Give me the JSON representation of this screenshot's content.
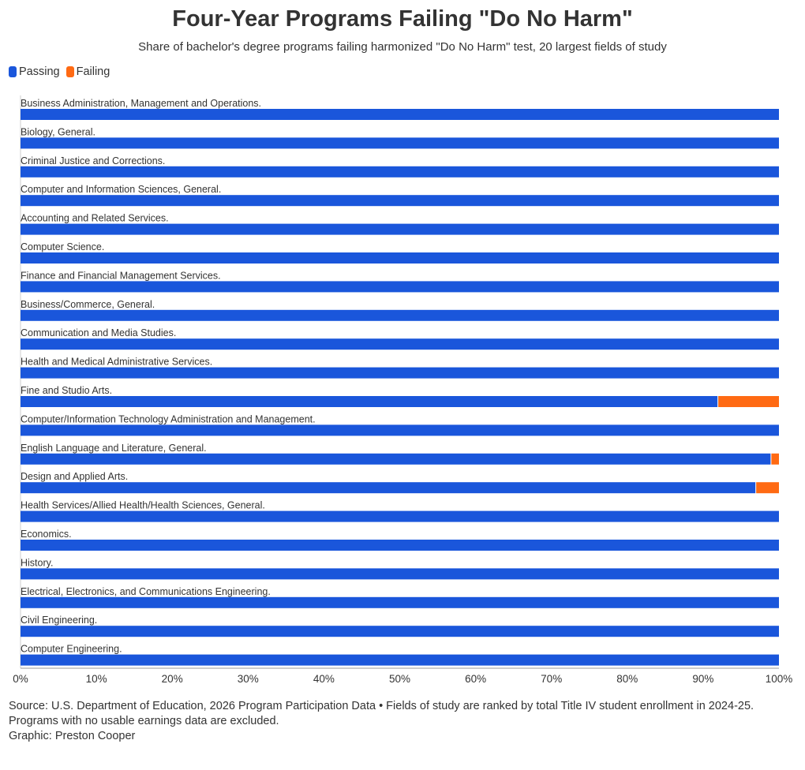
{
  "colors": {
    "passing": "#1a56db",
    "failing": "#ff6a13"
  },
  "chart_data": {
    "type": "bar",
    "orientation": "horizontal",
    "stacked": true,
    "title": "Four-Year Programs Failing \"Do No Harm\"",
    "subtitle": "Share of bachelor's degree programs failing harmonized \"Do No Harm\" test, 20 largest fields of study",
    "legend_position": "top-left",
    "xlim": [
      0,
      100
    ],
    "x_ticks": [
      "0%",
      "10%",
      "20%",
      "30%",
      "40%",
      "50%",
      "60%",
      "70%",
      "80%",
      "90%",
      "100%"
    ],
    "categories": [
      "Business Administration, Management and Operations.",
      "Biology, General.",
      "Criminal Justice and Corrections.",
      "Computer and Information Sciences, General.",
      "Accounting and Related Services.",
      "Computer Science.",
      "Finance and Financial Management Services.",
      "Business/Commerce, General.",
      "Communication and Media Studies.",
      "Health and Medical Administrative Services.",
      "Fine and Studio Arts.",
      "Computer/Information Technology Administration and Management.",
      "English Language and Literature, General.",
      "Design and Applied Arts.",
      "Health Services/Allied Health/Health Sciences, General.",
      "Economics.",
      "History.",
      "Electrical, Electronics, and Communications Engineering.",
      "Civil Engineering.",
      "Computer Engineering."
    ],
    "series": [
      {
        "name": "Passing",
        "values": [
          100,
          100,
          100,
          100,
          100,
          100,
          100,
          100,
          100,
          100,
          92,
          100,
          99,
          97,
          100,
          100,
          100,
          100,
          100,
          100
        ]
      },
      {
        "name": "Failing",
        "values": [
          0,
          0,
          0,
          0,
          0,
          0,
          0,
          0,
          0,
          0,
          8,
          0,
          1,
          3,
          0,
          0,
          0,
          0,
          0,
          0
        ]
      }
    ]
  },
  "footer": {
    "line1": "Source: U.S. Department of Education, 2026 Program Participation Data • Fields of study are ranked by total Title IV student enrollment in 2024-25.",
    "line2": "Programs with no usable earnings data are excluded.",
    "line3": "Graphic: Preston Cooper"
  }
}
